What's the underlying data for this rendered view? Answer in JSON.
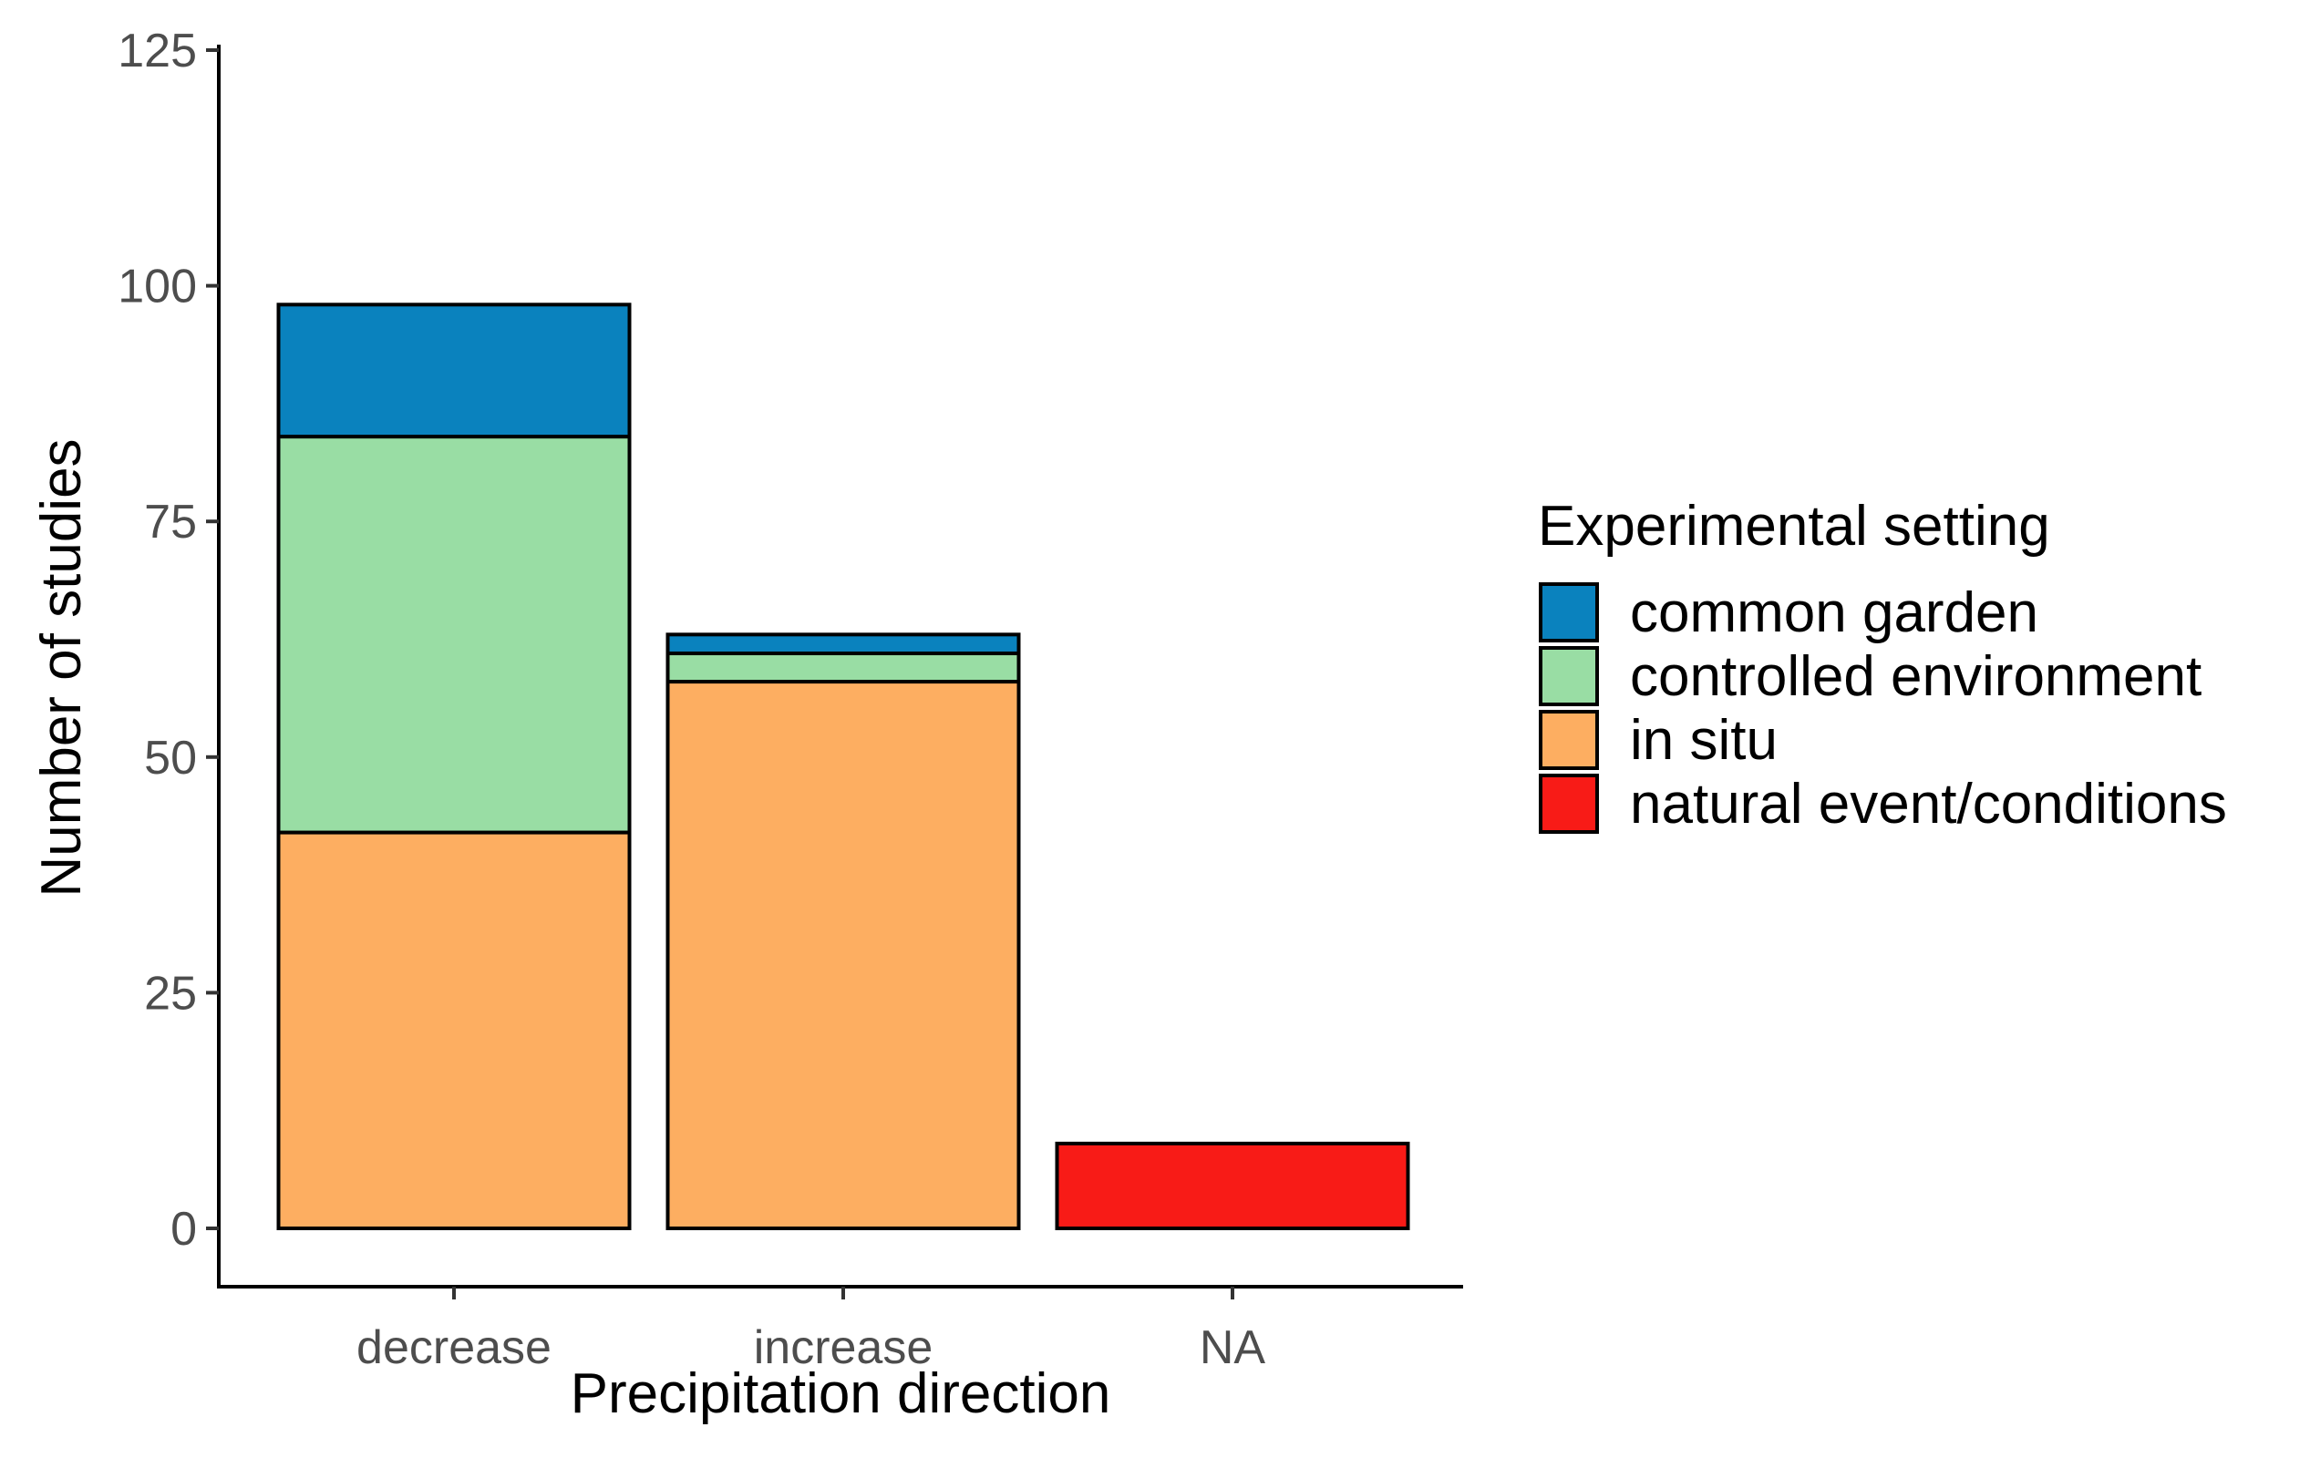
{
  "chart_data": {
    "type": "bar",
    "stacked": true,
    "xlabel": "Precipitation direction",
    "ylabel": "Number of studies",
    "ylim": [
      0,
      125
    ],
    "yticks": [
      0,
      25,
      50,
      75,
      100,
      125
    ],
    "categories": [
      "decrease",
      "increase",
      "NA"
    ],
    "legend_title": "Experimental setting",
    "legend_position": "right",
    "series": [
      {
        "name": "in situ",
        "color": "#FDAE61",
        "values": [
          42,
          58,
          0
        ]
      },
      {
        "name": "controlled environment",
        "color": "#99DDA4",
        "values": [
          42,
          3,
          0
        ]
      },
      {
        "name": "common garden",
        "color": "#0A82BE",
        "values": [
          14,
          2,
          0
        ]
      },
      {
        "name": "natural event/conditions",
        "color": "#F81B17",
        "values": [
          0,
          0,
          9
        ]
      }
    ],
    "legend_order": [
      "common garden",
      "controlled environment",
      "in situ",
      "natural event/conditions"
    ]
  }
}
